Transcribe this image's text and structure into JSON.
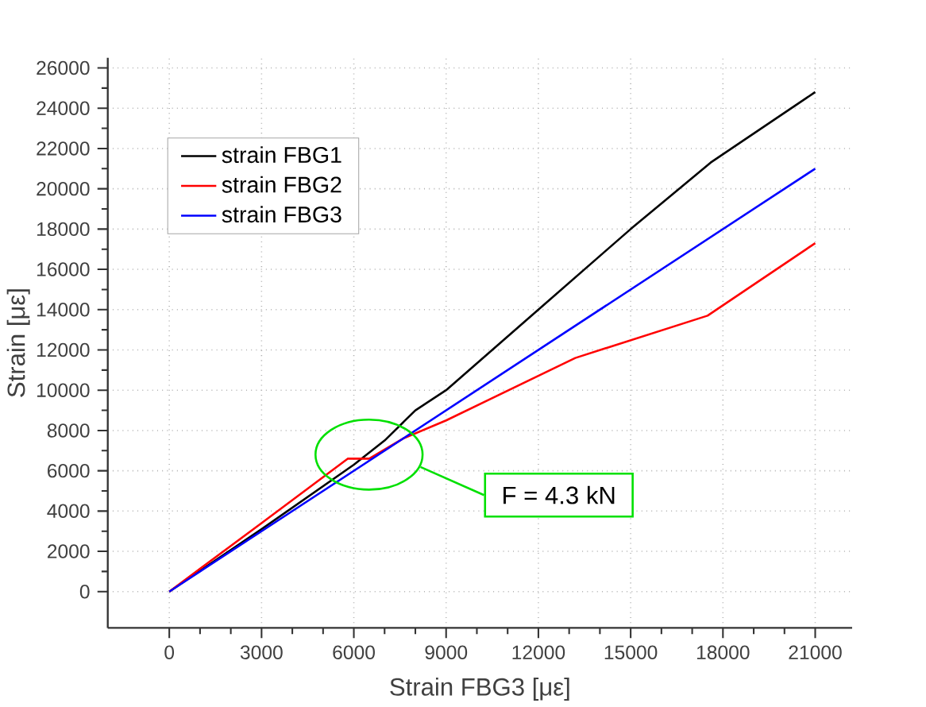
{
  "chart_data": {
    "type": "line",
    "xlabel": "Strain FBG3 [με]",
    "ylabel": "Strain [με]",
    "xlim": [
      -2000,
      22200
    ],
    "ylim": [
      -1800,
      26500
    ],
    "xticks": [
      0,
      3000,
      6000,
      9000,
      12000,
      15000,
      18000,
      21000
    ],
    "yticks": [
      0,
      2000,
      4000,
      6000,
      8000,
      10000,
      12000,
      14000,
      16000,
      18000,
      20000,
      22000,
      24000,
      26000
    ],
    "grid": true,
    "legend": "top left",
    "series": [
      {
        "name": "strain FBG1",
        "color": "#000000",
        "x": [
          0,
          3000,
          6000,
          7000,
          8000,
          9000,
          12000,
          15000,
          17600,
          21000
        ],
        "values": [
          0,
          3100,
          6300,
          7500,
          9000,
          10000,
          14000,
          18000,
          21300,
          24800
        ]
      },
      {
        "name": "strain FBG2",
        "color": "#ff0000",
        "x": [
          0,
          3000,
          5800,
          6500,
          7600,
          9000,
          13200,
          17500,
          21000
        ],
        "values": [
          0,
          3400,
          6600,
          6600,
          7600,
          8500,
          11600,
          13700,
          17300
        ]
      },
      {
        "name": "strain FBG3",
        "color": "#0000ff",
        "x": [
          0,
          21000
        ],
        "values": [
          0,
          21000
        ]
      }
    ],
    "annotations": [
      "F = 4.3 kN"
    ]
  }
}
